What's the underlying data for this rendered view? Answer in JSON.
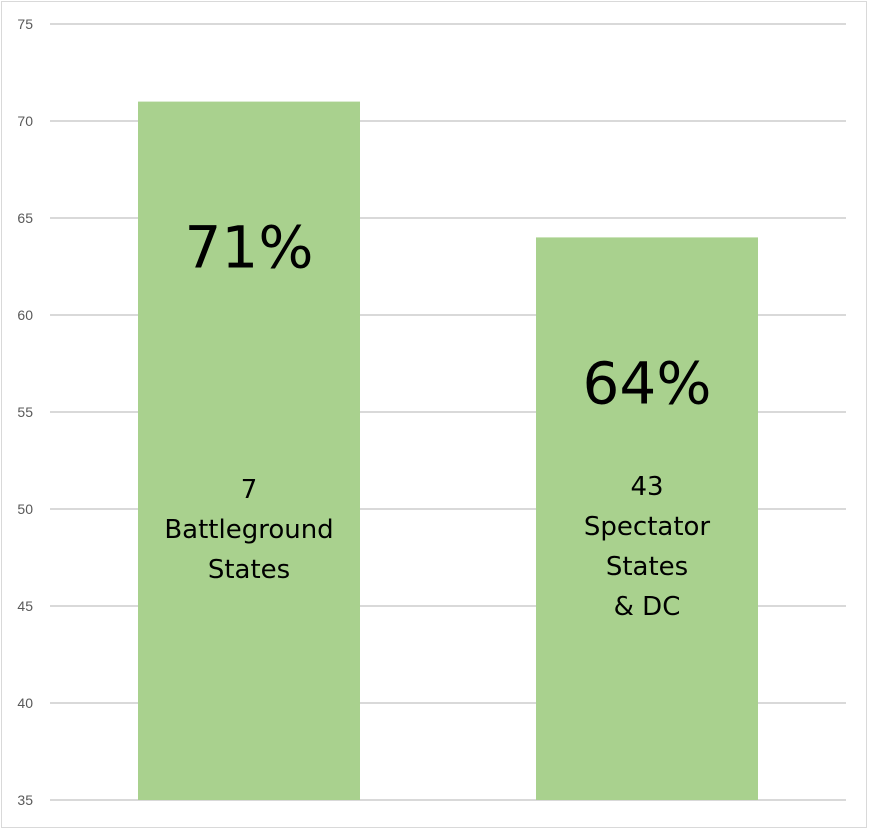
{
  "chart_data": {
    "type": "bar",
    "categories": [
      "7 Battleground States",
      "43 Spectator States & DC"
    ],
    "category_lines": [
      [
        "7",
        "Battleground",
        "States"
      ],
      [
        "43",
        "Spectator",
        "States",
        "& DC"
      ]
    ],
    "values": [
      71,
      64
    ],
    "data_labels": [
      "71%",
      "64%"
    ],
    "ylim": [
      35,
      75
    ],
    "yticks": [
      "35",
      "40",
      "45",
      "50",
      "55",
      "60",
      "65",
      "70",
      "75"
    ],
    "grid": true,
    "bar_color": "#a9d18e",
    "grid_color": "#d9d9d9",
    "title": "",
    "xlabel": "",
    "ylabel": ""
  }
}
